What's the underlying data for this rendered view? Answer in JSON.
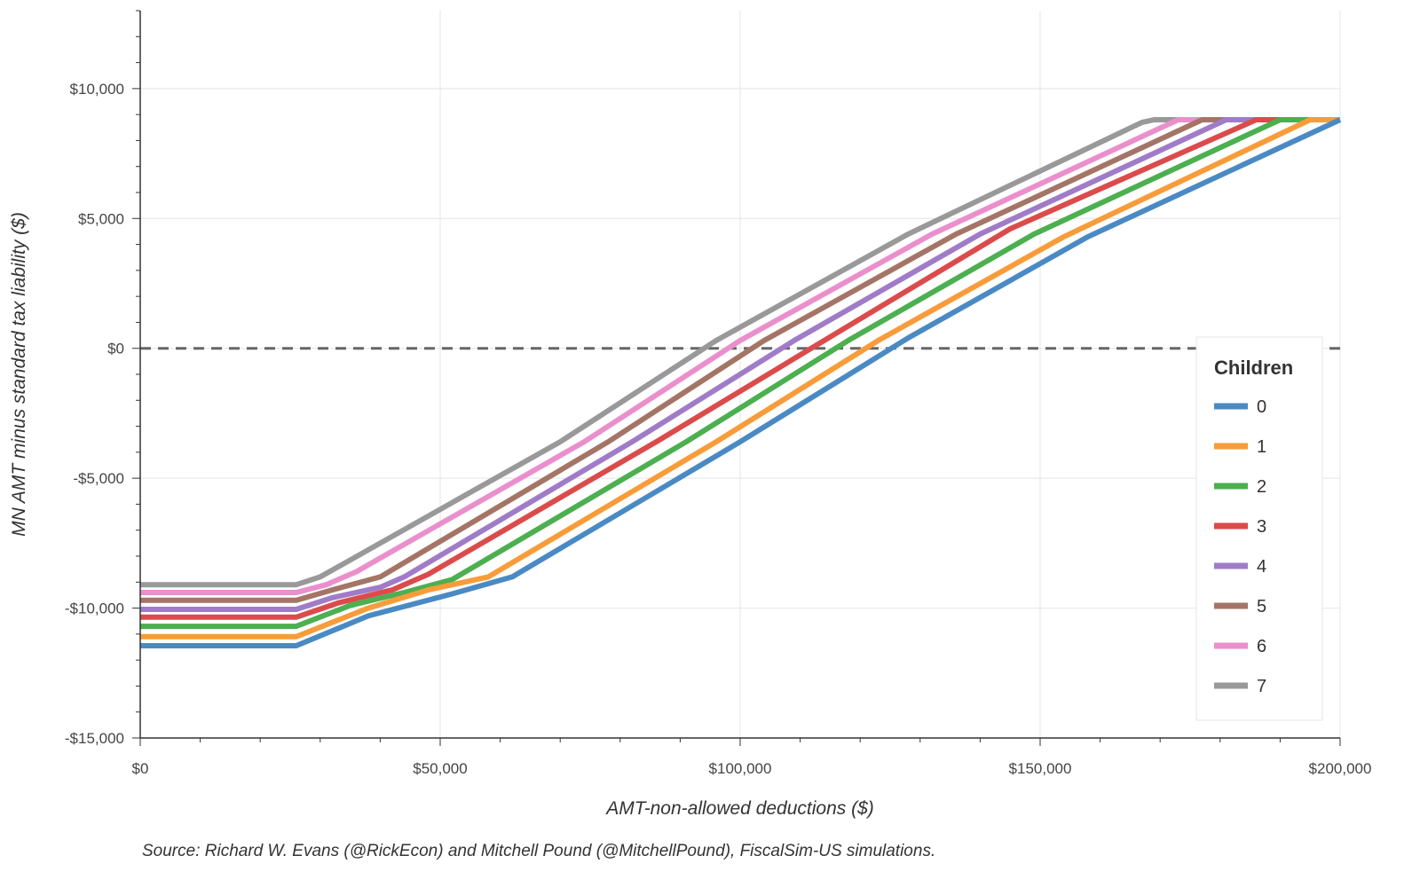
{
  "chart_data": {
    "type": "line",
    "title": "",
    "xlabel": "AMT-non-allowed deductions ($)",
    "ylabel": "MN AMT minus standard tax liability ($)",
    "xlim": [
      0,
      200000
    ],
    "ylim": [
      -15000,
      13000
    ],
    "x_ticks": [
      0,
      50000,
      100000,
      150000,
      200000
    ],
    "x_tick_labels": [
      "$0",
      "$50,000",
      "$100,000",
      "$150,000",
      "$200,000"
    ],
    "y_ticks": [
      -15000,
      -10000,
      -5000,
      0,
      5000,
      10000
    ],
    "y_tick_labels": [
      "-$15,000",
      "-$10,000",
      "-$5,000",
      "$0",
      "$5,000",
      "$10,000"
    ],
    "grid": true,
    "reference_line": {
      "y": 0,
      "style": "dashed",
      "color": "#666666"
    },
    "legend": {
      "title": "Children",
      "placement": "right"
    },
    "source": "Source: Richard W. Evans (@RickEcon) and Mitchell Pound (@MitchellPound), FiscalSim-US simulations.",
    "series": [
      {
        "name": "0",
        "color": "#4a8ac4",
        "points": [
          [
            0,
            -11450
          ],
          [
            26000,
            -11450
          ],
          [
            38000,
            -10300
          ],
          [
            52000,
            -9450
          ],
          [
            62000,
            -8800
          ],
          [
            100000,
            -3600
          ],
          [
            128000,
            400
          ],
          [
            158000,
            4300
          ],
          [
            200000,
            8800
          ]
        ]
      },
      {
        "name": "1",
        "color": "#f89c3a",
        "points": [
          [
            0,
            -11100
          ],
          [
            26000,
            -11100
          ],
          [
            38000,
            -10000
          ],
          [
            48000,
            -9300
          ],
          [
            58000,
            -8800
          ],
          [
            96000,
            -3600
          ],
          [
            123000,
            300
          ],
          [
            154000,
            4300
          ],
          [
            195000,
            8800
          ],
          [
            200000,
            8800
          ]
        ]
      },
      {
        "name": "2",
        "color": "#4caf50",
        "points": [
          [
            0,
            -10700
          ],
          [
            26000,
            -10700
          ],
          [
            35000,
            -9900
          ],
          [
            44000,
            -9400
          ],
          [
            52000,
            -8900
          ],
          [
            91000,
            -3600
          ],
          [
            118000,
            300
          ],
          [
            149000,
            4400
          ],
          [
            190000,
            8800
          ],
          [
            200000,
            8800
          ]
        ]
      },
      {
        "name": "3",
        "color": "#dc4b4b",
        "points": [
          [
            0,
            -10350
          ],
          [
            26000,
            -10350
          ],
          [
            33000,
            -9800
          ],
          [
            42000,
            -9300
          ],
          [
            48000,
            -8700
          ],
          [
            86000,
            -3600
          ],
          [
            114000,
            300
          ],
          [
            145000,
            4600
          ],
          [
            186000,
            8800
          ],
          [
            200000,
            8800
          ]
        ]
      },
      {
        "name": "4",
        "color": "#a07cc8",
        "points": [
          [
            0,
            -10050
          ],
          [
            26000,
            -10050
          ],
          [
            32000,
            -9600
          ],
          [
            40000,
            -9200
          ],
          [
            44000,
            -8800
          ],
          [
            82000,
            -3600
          ],
          [
            109000,
            300
          ],
          [
            140000,
            4400
          ],
          [
            181000,
            8800
          ],
          [
            200000,
            8800
          ]
        ]
      },
      {
        "name": "5",
        "color": "#a47566",
        "points": [
          [
            0,
            -9700
          ],
          [
            26000,
            -9700
          ],
          [
            32000,
            -9300
          ],
          [
            40000,
            -8800
          ],
          [
            78000,
            -3600
          ],
          [
            104000,
            300
          ],
          [
            136000,
            4400
          ],
          [
            177000,
            8800
          ],
          [
            200000,
            8800
          ]
        ]
      },
      {
        "name": "6",
        "color": "#ea8fcc",
        "points": [
          [
            0,
            -9400
          ],
          [
            26000,
            -9400
          ],
          [
            31000,
            -9100
          ],
          [
            36000,
            -8600
          ],
          [
            74000,
            -3600
          ],
          [
            100000,
            300
          ],
          [
            132000,
            4400
          ],
          [
            173000,
            8800
          ],
          [
            200000,
            8800
          ]
        ]
      },
      {
        "name": "7",
        "color": "#999999",
        "points": [
          [
            0,
            -9100
          ],
          [
            26000,
            -9100
          ],
          [
            30000,
            -8800
          ],
          [
            70000,
            -3600
          ],
          [
            96000,
            300
          ],
          [
            128000,
            4400
          ],
          [
            167000,
            8700
          ],
          [
            169000,
            8800
          ],
          [
            200000,
            8800
          ]
        ]
      }
    ]
  }
}
